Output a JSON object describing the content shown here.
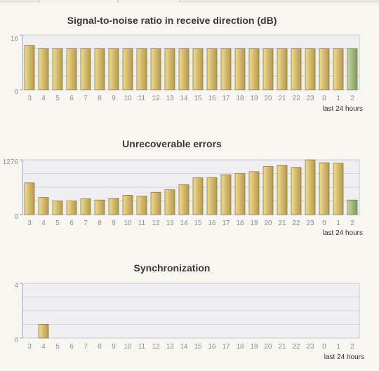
{
  "colors": {
    "bar_gold_light": "#f2dc8e",
    "bar_gold_dark": "#b49a4e",
    "bar_green_light": "#c8d6a2",
    "bar_green_dark": "#7f9960",
    "plot_bg": "#efeff1",
    "grid": "#d6d6da",
    "axis": "#9aa6c0"
  },
  "chart_data": [
    {
      "type": "bar",
      "title": "Signal-to-noise ratio in receive direction (dB)",
      "categories": [
        "3",
        "4",
        "5",
        "6",
        "7",
        "8",
        "9",
        "10",
        "11",
        "12",
        "13",
        "14",
        "15",
        "16",
        "17",
        "18",
        "19",
        "20",
        "21",
        "22",
        "23",
        "0",
        "1",
        "2"
      ],
      "values": [
        13,
        12,
        12,
        12,
        12,
        12,
        12,
        12,
        12,
        12,
        12,
        12,
        12,
        12,
        12,
        12,
        12,
        12,
        12,
        12,
        12,
        12,
        12,
        12
      ],
      "highlight_last": true,
      "ylim": [
        0,
        16
      ],
      "yticks": [
        "0",
        "16"
      ],
      "xlabel": "last 24 hours"
    },
    {
      "type": "bar",
      "title": "Unrecoverable errors",
      "categories": [
        "3",
        "4",
        "5",
        "6",
        "7",
        "8",
        "9",
        "10",
        "11",
        "12",
        "13",
        "14",
        "15",
        "16",
        "17",
        "18",
        "19",
        "20",
        "21",
        "22",
        "23",
        "0",
        "1",
        "2"
      ],
      "values": [
        740,
        400,
        320,
        320,
        370,
        340,
        380,
        450,
        430,
        520,
        580,
        700,
        860,
        860,
        930,
        960,
        1000,
        1120,
        1150,
        1100,
        1276,
        1210,
        1200,
        340
      ],
      "highlight_last": true,
      "ylim": [
        0,
        1276
      ],
      "yticks": [
        "0",
        "1276"
      ],
      "xlabel": "last 24 hours"
    },
    {
      "type": "bar",
      "title": "Synchronization",
      "categories": [
        "3",
        "4",
        "5",
        "6",
        "7",
        "8",
        "9",
        "10",
        "11",
        "12",
        "13",
        "14",
        "15",
        "16",
        "17",
        "18",
        "19",
        "20",
        "21",
        "22",
        "23",
        "0",
        "1",
        "2"
      ],
      "values": [
        0,
        1,
        0,
        0,
        0,
        0,
        0,
        0,
        0,
        0,
        0,
        0,
        0,
        0,
        0,
        0,
        0,
        0,
        0,
        0,
        0,
        0,
        0,
        0
      ],
      "highlight_last": true,
      "ylim": [
        0,
        4
      ],
      "yticks": [
        "0",
        "4"
      ],
      "xlabel": "last 24 hours"
    }
  ]
}
